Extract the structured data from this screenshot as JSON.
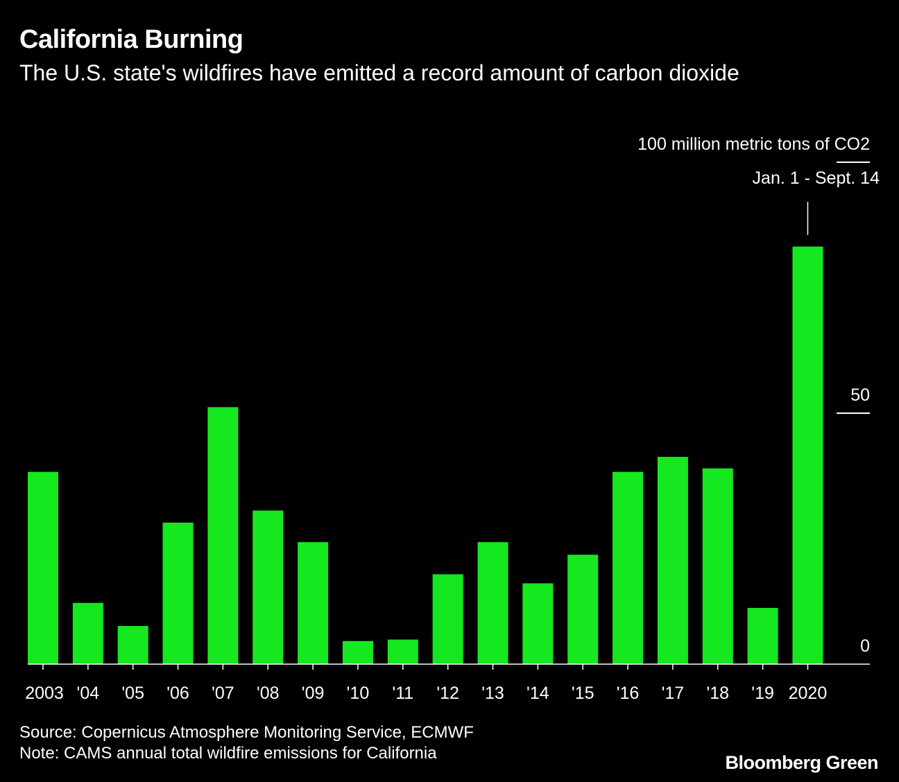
{
  "header": {
    "title": "California Burning",
    "subtitle": "The U.S. state's wildfires have emitted a record amount of carbon dioxide"
  },
  "footer": {
    "source": "Source: Copernicus Atmosphere Monitoring Service, ECMWF",
    "note": "Note: CAMS annual total wildfire emissions for California",
    "brand": "Bloomberg Green"
  },
  "colors": {
    "background": "#000000",
    "bar": "#16E820",
    "text": "#FFFFFF"
  },
  "chart_data": {
    "type": "bar",
    "title": "California Burning",
    "subtitle": "The U.S. state's wildfires have emitted a record amount of carbon dioxide",
    "unit_label": "100 million metric tons of CO2",
    "categories": [
      "2003",
      "'04",
      "'05",
      "'06",
      "'07",
      "'08",
      "'09",
      "'10",
      "'11",
      "'12",
      "'13",
      "'14",
      "'15",
      "'16",
      "'17",
      "'18",
      "'19",
      "2020"
    ],
    "values": [
      38.3,
      12.2,
      7.6,
      28.2,
      51.2,
      30.6,
      24.3,
      4.6,
      4.9,
      17.9,
      24.3,
      16.1,
      21.8,
      38.3,
      41.3,
      39.0,
      11.2,
      83.2
    ],
    "yticks": [
      0,
      50,
      100
    ],
    "ylim": [
      0,
      100
    ],
    "annotation": {
      "text": "Jan. 1 - Sept. 14",
      "category": "2020"
    },
    "grid": false,
    "legend": "none"
  }
}
